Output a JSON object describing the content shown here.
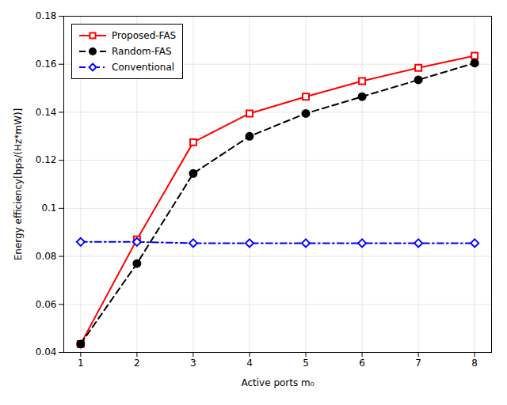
{
  "chart_data": {
    "type": "line",
    "x": [
      1,
      2,
      3,
      4,
      5,
      6,
      7,
      8
    ],
    "series": [
      {
        "name": "Proposed-FAS",
        "color": "#ff0000",
        "marker": "square",
        "line_style": "solid",
        "values": [
          0.0435,
          0.087,
          0.1275,
          0.1395,
          0.1465,
          0.153,
          0.1585,
          0.1635
        ]
      },
      {
        "name": "Random-FAS",
        "color": "#000000",
        "marker": "circle",
        "line_style": "dashed",
        "values": [
          0.0435,
          0.077,
          0.1145,
          0.13,
          0.1395,
          0.1465,
          0.1535,
          0.1605
        ]
      },
      {
        "name": "Conventional",
        "color": "#0000ff",
        "marker": "diamond",
        "line_style": "dashdot",
        "values": [
          0.086,
          0.086,
          0.0855,
          0.0855,
          0.0855,
          0.0855,
          0.0855,
          0.0855
        ]
      }
    ],
    "xlabel": "Active ports m₀",
    "ylabel": "Energy efficiency[bps/(Hz*mW)]",
    "xlim": [
      0.7,
      8.3
    ],
    "ylim": [
      0.04,
      0.18
    ],
    "xticks": [
      1,
      2,
      3,
      4,
      5,
      6,
      7,
      8
    ],
    "yticks": [
      0.04,
      0.06,
      0.08,
      0.1,
      0.12,
      0.14,
      0.16,
      0.18
    ],
    "grid": true,
    "legend": "upper left"
  }
}
